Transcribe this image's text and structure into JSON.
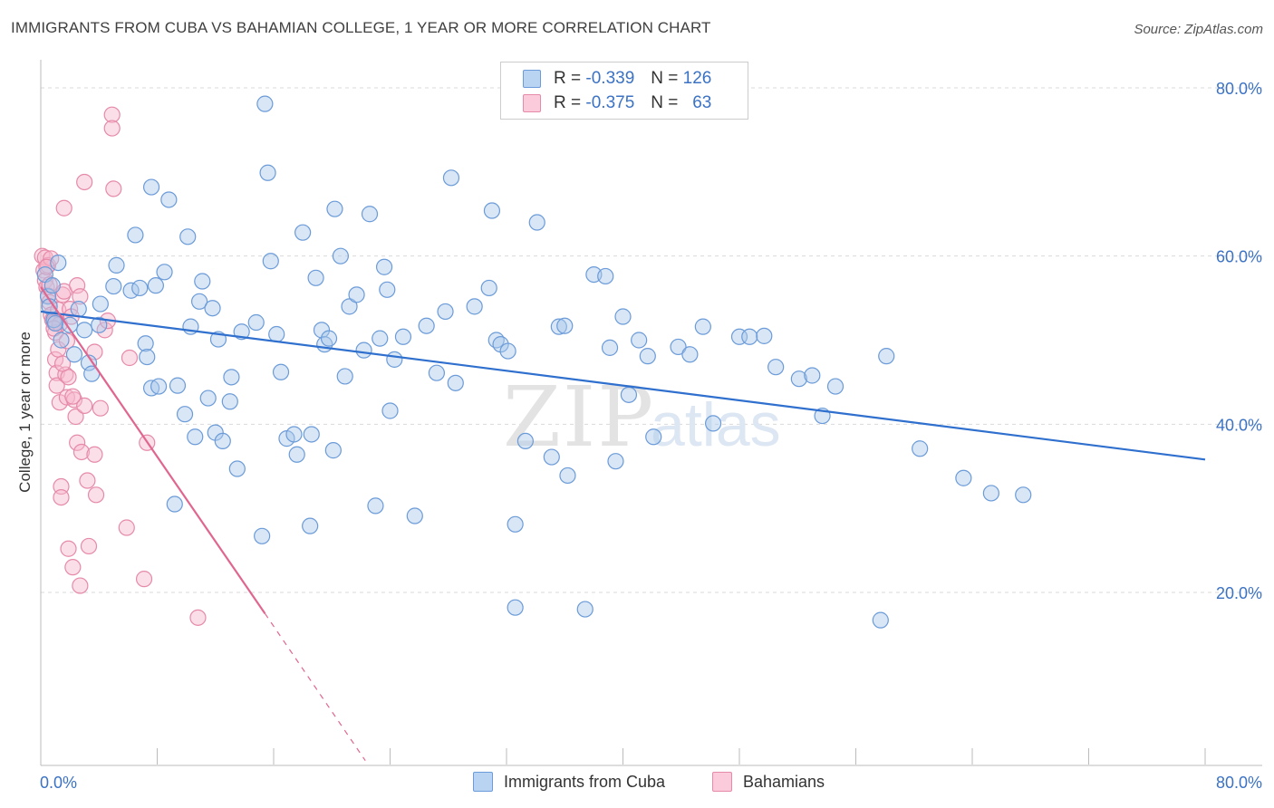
{
  "title": "IMMIGRANTS FROM CUBA VS BAHAMIAN COLLEGE, 1 YEAR OR MORE CORRELATION CHART",
  "source": "Source: ZipAtlas.com",
  "watermark": {
    "zip": "ZIP",
    "atlas": "atlas"
  },
  "legend": {
    "rows": [
      {
        "r_label": "R =",
        "r_value": "-0.339",
        "n_label": "N =",
        "n_value": "126"
      },
      {
        "r_label": "R =",
        "r_value": "-0.375",
        "n_label": "N =",
        "n_value": "63"
      }
    ]
  },
  "bottom_legend": [
    "Immigrants from Cuba",
    "Bahamians"
  ],
  "colors": {
    "blue_fill": "#a9c7ec",
    "blue_stroke": "#6b9bd8",
    "blue_line": "#2f6fce",
    "pink_fill": "#f7b9cd",
    "pink_stroke": "#e68aa9",
    "pink_line": "#e0668f",
    "grid": "#d9d9d9",
    "tick_text": "#3b72c4"
  },
  "chart_data": {
    "type": "scatter",
    "title": "IMMIGRANTS FROM CUBA VS BAHAMIAN COLLEGE, 1 YEAR OR MORE CORRELATION CHART",
    "xlabel": "",
    "ylabel": "College, 1 year or more",
    "xlim": [
      0,
      80
    ],
    "ylim": [
      0,
      82
    ],
    "x_tick_labels": [
      "0.0%",
      "80.0%"
    ],
    "y_ticks": [
      20,
      40,
      60,
      80
    ],
    "y_tick_labels": [
      "20.0%",
      "40.0%",
      "60.0%",
      "80.0%"
    ],
    "grid": true,
    "legend_position": "top-center",
    "series": [
      {
        "name": "Immigrants from Cuba",
        "r": -0.339,
        "n": 126,
        "trend": {
          "x0": 0,
          "y0": 53.4,
          "x1": 80,
          "y1": 35.8
        },
        "points": [
          [
            0.3,
            57.8
          ],
          [
            0.5,
            55.2
          ],
          [
            0.6,
            54.0
          ],
          [
            0.8,
            56.5
          ],
          [
            0.9,
            52.4
          ],
          [
            1.0,
            52.0
          ],
          [
            1.2,
            59.2
          ],
          [
            1.4,
            50.0
          ],
          [
            2.0,
            51.8
          ],
          [
            2.3,
            48.3
          ],
          [
            2.6,
            53.7
          ],
          [
            3.0,
            51.2
          ],
          [
            3.3,
            47.3
          ],
          [
            3.5,
            46.0
          ],
          [
            4.0,
            51.8
          ],
          [
            4.1,
            54.3
          ],
          [
            5.0,
            56.4
          ],
          [
            5.2,
            58.9
          ],
          [
            6.2,
            55.9
          ],
          [
            6.5,
            62.5
          ],
          [
            6.8,
            56.2
          ],
          [
            7.2,
            49.6
          ],
          [
            7.3,
            48.0
          ],
          [
            7.6,
            68.2
          ],
          [
            7.6,
            44.3
          ],
          [
            7.9,
            56.5
          ],
          [
            8.1,
            44.5
          ],
          [
            8.5,
            58.1
          ],
          [
            8.8,
            66.7
          ],
          [
            9.2,
            30.5
          ],
          [
            9.4,
            44.6
          ],
          [
            9.9,
            41.2
          ],
          [
            10.1,
            62.3
          ],
          [
            10.3,
            51.6
          ],
          [
            10.6,
            38.5
          ],
          [
            10.9,
            54.6
          ],
          [
            11.1,
            57.0
          ],
          [
            11.5,
            43.1
          ],
          [
            11.8,
            53.8
          ],
          [
            12.0,
            39.0
          ],
          [
            12.2,
            50.1
          ],
          [
            12.5,
            38.0
          ],
          [
            13.1,
            45.6
          ],
          [
            13.0,
            42.7
          ],
          [
            13.5,
            34.7
          ],
          [
            13.8,
            51.0
          ],
          [
            14.8,
            52.1
          ],
          [
            15.2,
            26.7
          ],
          [
            15.4,
            78.1
          ],
          [
            15.6,
            69.9
          ],
          [
            15.8,
            59.4
          ],
          [
            16.2,
            50.7
          ],
          [
            16.5,
            46.2
          ],
          [
            16.9,
            38.3
          ],
          [
            17.4,
            38.8
          ],
          [
            17.6,
            36.4
          ],
          [
            18.0,
            62.8
          ],
          [
            18.5,
            27.9
          ],
          [
            18.6,
            38.8
          ],
          [
            18.9,
            57.4
          ],
          [
            19.3,
            51.2
          ],
          [
            19.5,
            49.5
          ],
          [
            19.8,
            50.2
          ],
          [
            20.1,
            36.9
          ],
          [
            20.2,
            65.6
          ],
          [
            20.6,
            60.0
          ],
          [
            20.9,
            45.7
          ],
          [
            21.2,
            54.0
          ],
          [
            21.7,
            55.4
          ],
          [
            22.2,
            48.8
          ],
          [
            22.6,
            65.0
          ],
          [
            23.0,
            30.3
          ],
          [
            23.3,
            50.2
          ],
          [
            23.6,
            58.7
          ],
          [
            23.8,
            56.0
          ],
          [
            24.0,
            41.6
          ],
          [
            24.3,
            47.7
          ],
          [
            24.9,
            50.4
          ],
          [
            25.7,
            29.1
          ],
          [
            26.5,
            51.7
          ],
          [
            27.2,
            46.1
          ],
          [
            27.8,
            53.4
          ],
          [
            28.2,
            69.3
          ],
          [
            28.5,
            44.9
          ],
          [
            29.8,
            54.0
          ],
          [
            30.8,
            56.2
          ],
          [
            31.0,
            65.4
          ],
          [
            31.3,
            50.0
          ],
          [
            31.6,
            49.5
          ],
          [
            32.1,
            48.7
          ],
          [
            32.6,
            18.2
          ],
          [
            32.6,
            28.1
          ],
          [
            33.3,
            38.0
          ],
          [
            34.1,
            64.0
          ],
          [
            35.1,
            36.1
          ],
          [
            35.6,
            51.6
          ],
          [
            36.0,
            51.7
          ],
          [
            36.2,
            33.9
          ],
          [
            37.4,
            18.0
          ],
          [
            38.0,
            57.8
          ],
          [
            38.8,
            57.6
          ],
          [
            39.1,
            49.1
          ],
          [
            39.5,
            35.6
          ],
          [
            40.0,
            52.8
          ],
          [
            40.4,
            43.5
          ],
          [
            41.1,
            50.0
          ],
          [
            41.7,
            48.1
          ],
          [
            42.1,
            38.5
          ],
          [
            43.8,
            49.2
          ],
          [
            44.6,
            48.3
          ],
          [
            45.5,
            51.6
          ],
          [
            46.2,
            40.1
          ],
          [
            48.0,
            50.4
          ],
          [
            48.7,
            50.4
          ],
          [
            49.7,
            50.5
          ],
          [
            50.5,
            46.8
          ],
          [
            52.1,
            45.4
          ],
          [
            53.0,
            45.8
          ],
          [
            53.7,
            41.0
          ],
          [
            54.6,
            44.5
          ],
          [
            57.7,
            16.7
          ],
          [
            58.1,
            48.1
          ],
          [
            60.4,
            37.1
          ],
          [
            63.4,
            33.6
          ],
          [
            65.3,
            31.8
          ],
          [
            67.5,
            31.6
          ]
        ]
      },
      {
        "name": "Bahamians",
        "r": -0.375,
        "n": 63,
        "trend": {
          "x0": 0,
          "y0": 56.3,
          "x1": 15.4,
          "y1": 17.5,
          "dash_to": {
            "x": 22.3,
            "y": 0
          }
        },
        "points": [
          [
            0.1,
            60.0
          ],
          [
            0.2,
            58.3
          ],
          [
            0.3,
            59.8
          ],
          [
            0.3,
            57.1
          ],
          [
            0.4,
            56.3
          ],
          [
            0.5,
            58.9
          ],
          [
            0.5,
            55.3
          ],
          [
            0.6,
            54.5
          ],
          [
            0.7,
            59.7
          ],
          [
            0.7,
            53.0
          ],
          [
            0.8,
            52.4
          ],
          [
            0.9,
            52.1
          ],
          [
            1.0,
            50.9
          ],
          [
            1.0,
            47.7
          ],
          [
            1.1,
            46.1
          ],
          [
            1.1,
            44.6
          ],
          [
            1.2,
            48.9
          ],
          [
            1.2,
            53.6
          ],
          [
            1.3,
            51.9
          ],
          [
            1.3,
            42.6
          ],
          [
            1.4,
            32.6
          ],
          [
            1.4,
            31.3
          ],
          [
            1.5,
            55.4
          ],
          [
            1.6,
            65.7
          ],
          [
            1.6,
            55.8
          ],
          [
            1.7,
            45.9
          ],
          [
            1.8,
            43.2
          ],
          [
            1.9,
            45.6
          ],
          [
            1.9,
            25.2
          ],
          [
            2.0,
            53.7
          ],
          [
            2.1,
            52.8
          ],
          [
            2.2,
            23.0
          ],
          [
            2.3,
            42.9
          ],
          [
            2.4,
            40.9
          ],
          [
            2.5,
            56.5
          ],
          [
            2.5,
            37.8
          ],
          [
            2.7,
            55.2
          ],
          [
            2.7,
            20.8
          ],
          [
            2.8,
            36.7
          ],
          [
            3.0,
            68.8
          ],
          [
            3.0,
            42.2
          ],
          [
            3.2,
            33.3
          ],
          [
            3.3,
            25.5
          ],
          [
            3.7,
            48.6
          ],
          [
            3.7,
            36.4
          ],
          [
            3.8,
            31.6
          ],
          [
            4.1,
            41.9
          ],
          [
            4.4,
            51.2
          ],
          [
            4.6,
            52.3
          ],
          [
            4.9,
            76.8
          ],
          [
            4.9,
            75.2
          ],
          [
            5.0,
            68.0
          ],
          [
            5.9,
            27.7
          ],
          [
            6.1,
            47.9
          ],
          [
            7.1,
            21.6
          ],
          [
            7.3,
            37.8
          ],
          [
            10.8,
            17.0
          ],
          [
            0.9,
            51.4
          ],
          [
            1.5,
            47.2
          ],
          [
            0.6,
            56.6
          ],
          [
            2.2,
            43.3
          ],
          [
            0.4,
            58.7
          ],
          [
            1.8,
            49.9
          ]
        ]
      }
    ]
  }
}
